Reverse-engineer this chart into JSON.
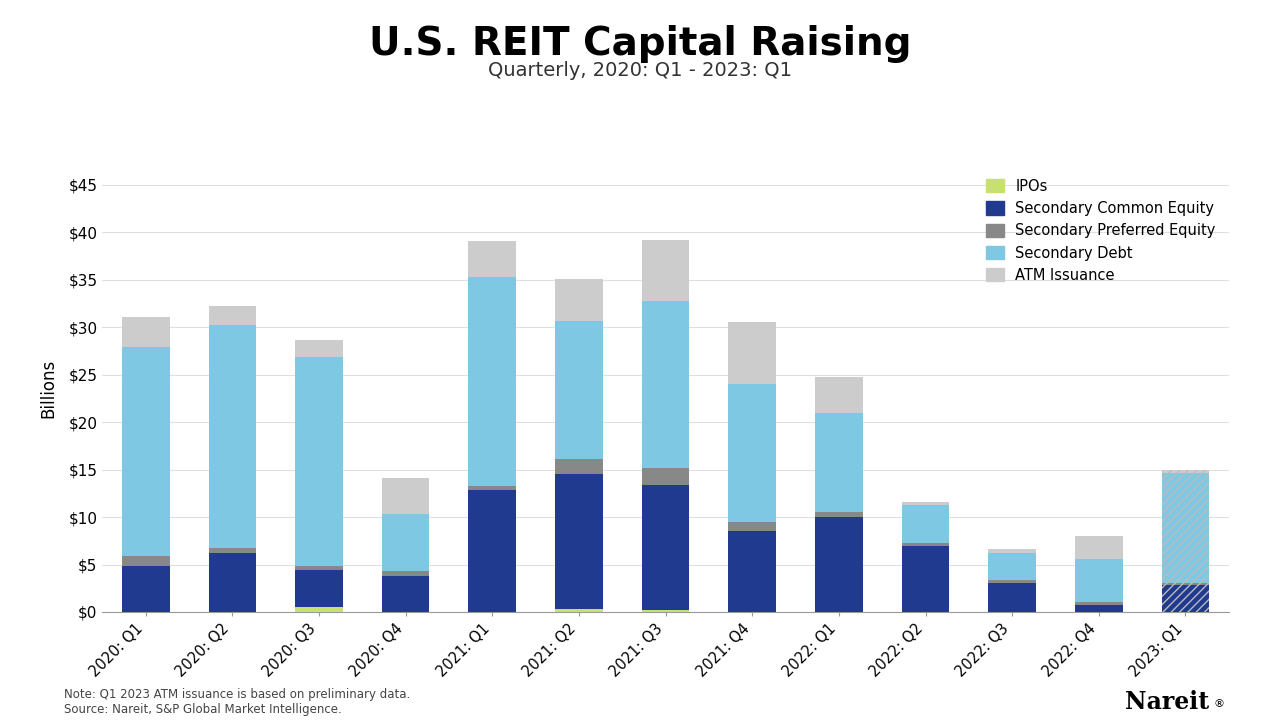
{
  "quarters": [
    "2020: Q1",
    "2020: Q2",
    "2020: Q3",
    "2020: Q4",
    "2021: Q1",
    "2021: Q2",
    "2021: Q3",
    "2021: Q4",
    "2022: Q1",
    "2022: Q2",
    "2022: Q3",
    "2022: Q4",
    "2023: Q1"
  ],
  "ipos": [
    0.0,
    0.0,
    0.5,
    0.0,
    0.0,
    0.3,
    0.2,
    0.0,
    0.0,
    0.0,
    0.0,
    0.0,
    0.0
  ],
  "secondary_common_equity": [
    4.8,
    6.2,
    3.9,
    3.8,
    12.8,
    14.2,
    13.2,
    8.5,
    10.0,
    7.0,
    3.1,
    0.7,
    2.8
  ],
  "secondary_preferred_equity": [
    1.1,
    0.5,
    0.4,
    0.5,
    0.5,
    1.6,
    1.8,
    1.0,
    0.5,
    0.3,
    0.3,
    0.4,
    0.3
  ],
  "secondary_debt": [
    22.0,
    23.5,
    22.0,
    6.0,
    22.0,
    14.5,
    17.5,
    14.5,
    10.5,
    4.0,
    2.8,
    4.5,
    11.5
  ],
  "atm_issuance": [
    3.2,
    2.0,
    1.8,
    3.8,
    3.8,
    4.5,
    6.5,
    6.5,
    3.7,
    0.3,
    0.4,
    2.4,
    0.3
  ],
  "colors": {
    "ipos": "#c8e06e",
    "secondary_common_equity": "#1f3a8f",
    "secondary_preferred_equity": "#888888",
    "secondary_debt": "#7ec8e3",
    "atm_issuance": "#cccccc"
  },
  "title": "U.S. REIT Capital Raising",
  "subtitle": "Quarterly, 2020: Q1 - 2023: Q1",
  "ylabel": "Billions",
  "ylim": [
    0,
    47
  ],
  "yticks": [
    0,
    5,
    10,
    15,
    20,
    25,
    30,
    35,
    40,
    45
  ],
  "ytick_labels": [
    "$0",
    "$5",
    "$10",
    "$15",
    "$20",
    "$25",
    "$30",
    "$35",
    "$40",
    "$45"
  ],
  "note": "Note: Q1 2023 ATM issuance is based on preliminary data.\nSource: Nareit, S&P Global Market Intelligence.",
  "background_color": "#ffffff"
}
